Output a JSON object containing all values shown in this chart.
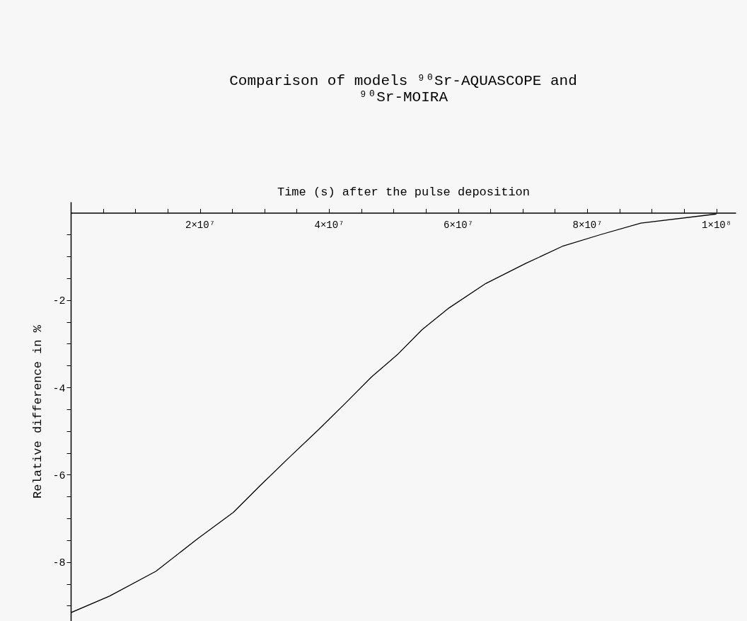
{
  "chart_data": {
    "type": "line",
    "title": "Comparison of models ⁹⁰Sr-AQUASCOPE and ⁹⁰Sr-MOIRA",
    "xlabel": "Time (s) after the pulse deposition",
    "ylabel": "Relative difference in %",
    "x": [
      0,
      6000000,
      13200000,
      19700000,
      25200000,
      29400000,
      33800000,
      38300000,
      42500000,
      46600000,
      50600000,
      54400000,
      58600000,
      64300000,
      70500000,
      76300000,
      82100000,
      88300000,
      100000000
    ],
    "series": [
      {
        "color": "#000000",
        "values": [
          -9.16,
          -8.78,
          -8.21,
          -7.46,
          -6.86,
          -6.24,
          -5.61,
          -4.98,
          -4.37,
          -3.76,
          -3.25,
          -2.68,
          -2.18,
          -1.62,
          -1.16,
          -0.76,
          -0.5,
          -0.24,
          -0.03
        ]
      }
    ],
    "xlim": [
      0,
      103000000
    ],
    "ylim": [
      -9.35,
      0.25
    ],
    "xticks": [
      {
        "value": 5000000,
        "label": null
      },
      {
        "value": 10000000,
        "label": null
      },
      {
        "value": 15000000,
        "label": null
      },
      {
        "value": 20000000,
        "label": "2×10⁷"
      },
      {
        "value": 25000000,
        "label": null
      },
      {
        "value": 30000000,
        "label": null
      },
      {
        "value": 35000000,
        "label": null
      },
      {
        "value": 40000000,
        "label": "4×10⁷"
      },
      {
        "value": 45000000,
        "label": null
      },
      {
        "value": 50000000,
        "label": null
      },
      {
        "value": 55000000,
        "label": null
      },
      {
        "value": 60000000,
        "label": "6×10⁷"
      },
      {
        "value": 65000000,
        "label": null
      },
      {
        "value": 70000000,
        "label": null
      },
      {
        "value": 75000000,
        "label": null
      },
      {
        "value": 80000000,
        "label": "8×10⁷"
      },
      {
        "value": 85000000,
        "label": null
      },
      {
        "value": 90000000,
        "label": null
      },
      {
        "value": 95000000,
        "label": null
      },
      {
        "value": 100000000,
        "label": "1×10⁸"
      }
    ],
    "yticks": [
      {
        "value": -0.5,
        "label": null
      },
      {
        "value": -1,
        "label": null
      },
      {
        "value": -1.5,
        "label": null
      },
      -2,
      {
        "value": -2.5,
        "label": null
      },
      {
        "value": -3,
        "label": null
      },
      {
        "value": -3.5,
        "label": null
      },
      -4,
      {
        "value": -4.5,
        "label": null
      },
      {
        "value": -5,
        "label": null
      },
      {
        "value": -5.5,
        "label": null
      },
      -6,
      {
        "value": -6.5,
        "label": null
      },
      {
        "value": -7,
        "label": null
      },
      {
        "value": -7.5,
        "label": null
      },
      -8,
      {
        "value": -8.5,
        "label": null
      },
      {
        "value": -9,
        "label": null
      }
    ],
    "grid": false,
    "legend": false,
    "marker": "none",
    "line_style": "solid"
  }
}
